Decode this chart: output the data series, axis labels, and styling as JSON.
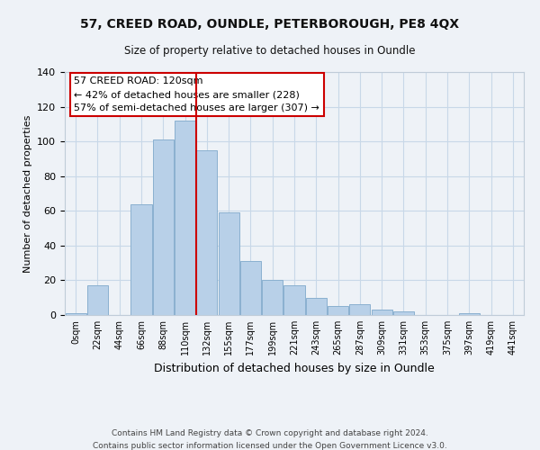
{
  "title": "57, CREED ROAD, OUNDLE, PETERBOROUGH, PE8 4QX",
  "subtitle": "Size of property relative to detached houses in Oundle",
  "xlabel": "Distribution of detached houses by size in Oundle",
  "ylabel": "Number of detached properties",
  "bar_labels": [
    "0sqm",
    "22sqm",
    "44sqm",
    "66sqm",
    "88sqm",
    "110sqm",
    "132sqm",
    "155sqm",
    "177sqm",
    "199sqm",
    "221sqm",
    "243sqm",
    "265sqm",
    "287sqm",
    "309sqm",
    "331sqm",
    "353sqm",
    "375sqm",
    "397sqm",
    "419sqm",
    "441sqm"
  ],
  "bar_heights": [
    1,
    17,
    0,
    64,
    101,
    112,
    95,
    59,
    31,
    20,
    17,
    10,
    5,
    6,
    3,
    2,
    0,
    0,
    1,
    0,
    0
  ],
  "bar_color": "#b8d0e8",
  "bar_edge_color": "#8ab0d0",
  "vline_x": 5.5,
  "vline_color": "#cc0000",
  "annotation_title": "57 CREED ROAD: 120sqm",
  "annotation_line1": "← 42% of detached houses are smaller (228)",
  "annotation_line2": "57% of semi-detached houses are larger (307) →",
  "annotation_box_facecolor": "#ffffff",
  "annotation_box_edgecolor": "#cc0000",
  "ylim": [
    0,
    140
  ],
  "yticks": [
    0,
    20,
    40,
    60,
    80,
    100,
    120,
    140
  ],
  "footnote1": "Contains HM Land Registry data © Crown copyright and database right 2024.",
  "footnote2": "Contains public sector information licensed under the Open Government Licence v3.0.",
  "bg_color": "#eef2f7"
}
